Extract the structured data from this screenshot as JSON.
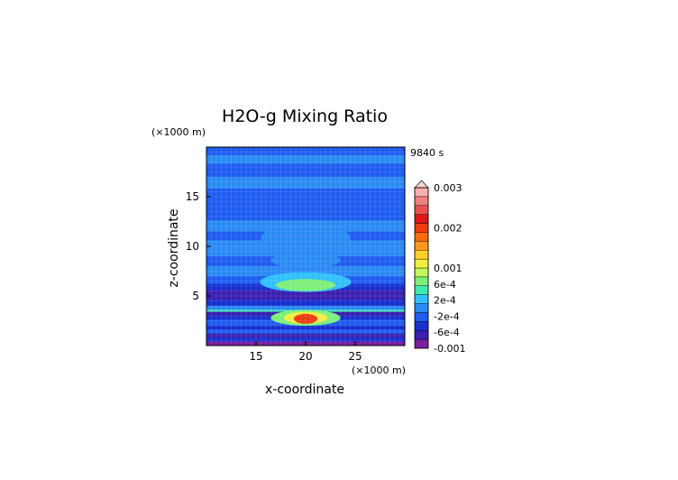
{
  "chart_data": {
    "type": "heatmap",
    "title": "H2O-g Mixing Ratio",
    "time_label": "9840 s",
    "xlabel": "x-coordinate",
    "ylabel": "z-coordinate",
    "x_unit": "(×1000 m)",
    "y_unit": "(×1000 m)",
    "xlim": [
      10,
      30
    ],
    "ylim": [
      0,
      20
    ],
    "x_ticks": [
      15,
      20,
      25
    ],
    "y_ticks": [
      5,
      10,
      15
    ],
    "colorbar": {
      "labels": [
        {
          "text": "0.003",
          "value": 0.003
        },
        {
          "text": "0.002",
          "value": 0.002
        },
        {
          "text": "0.001",
          "value": 0.001
        },
        {
          "text": "6e-4",
          "value": 0.0006
        },
        {
          "text": "2e-4",
          "value": 0.0002
        },
        {
          "text": "-2e-4",
          "value": -0.0002
        },
        {
          "text": "-6e-4",
          "value": -0.0006
        },
        {
          "text": "-0.001",
          "value": -0.001
        }
      ],
      "colors": [
        "#7a1fa0",
        "#3a1fb0",
        "#1830d0",
        "#1f5cf0",
        "#2a8af5",
        "#30c0ff",
        "#40e8b0",
        "#7cf07a",
        "#c4f55a",
        "#f0f040",
        "#ffd028",
        "#ff9a20",
        "#ff6a10",
        "#f03a10",
        "#e01818",
        "#e85050",
        "#f08080",
        "#f8b0b0"
      ]
    },
    "bands": [
      {
        "z_range": [
          19.2,
          20.0
        ],
        "value": -0.0002
      },
      {
        "z_range": [
          18.3,
          19.2
        ],
        "value": 0.0
      },
      {
        "z_range": [
          17.0,
          18.3
        ],
        "value": -0.0002
      },
      {
        "z_range": [
          15.8,
          17.0
        ],
        "value": 0.0
      },
      {
        "z_range": [
          12.6,
          15.8
        ],
        "value": -0.0002
      },
      {
        "z_range": [
          11.5,
          12.6
        ],
        "value": 0.0
      },
      {
        "z_range": [
          10.6,
          11.5
        ],
        "value": -0.0002
      },
      {
        "z_range": [
          9.0,
          10.6
        ],
        "value": 0.0
      },
      {
        "z_range": [
          8.0,
          9.0
        ],
        "value": -0.0002
      },
      {
        "z_range": [
          7.0,
          8.0
        ],
        "value": 0.0
      },
      {
        "z_range": [
          6.2,
          7.0
        ],
        "value": -0.0002
      },
      {
        "z_range": [
          5.6,
          6.2
        ],
        "value": -0.0004
      },
      {
        "z_range": [
          4.6,
          5.6
        ],
        "value": -0.0006
      },
      {
        "z_range": [
          4.0,
          4.6
        ],
        "value": -0.0004
      },
      {
        "z_range": [
          3.6,
          4.0
        ],
        "value": 0.0
      },
      {
        "z_range": [
          3.4,
          3.6
        ],
        "value": 0.0004
      },
      {
        "z_range": [
          3.0,
          3.4
        ],
        "value": -0.0006
      },
      {
        "z_range": [
          2.6,
          3.0
        ],
        "value": -0.0004
      },
      {
        "z_range": [
          2.0,
          2.6
        ],
        "value": -0.0002
      },
      {
        "z_range": [
          1.6,
          2.0
        ],
        "value": -0.0004
      },
      {
        "z_range": [
          1.2,
          1.6
        ],
        "value": -0.0002
      },
      {
        "z_range": [
          0.8,
          1.2
        ],
        "value": -0.0006
      },
      {
        "z_range": [
          0.4,
          0.8
        ],
        "value": -0.0004
      },
      {
        "z_range": [
          0.0,
          0.4
        ],
        "value": -0.001
      }
    ],
    "features": [
      {
        "center": [
          20,
          10.8
        ],
        "radii": [
          4.5,
          1.5
        ],
        "value": 0.0
      },
      {
        "center": [
          20,
          8.6
        ],
        "radii": [
          3.5,
          0.8
        ],
        "value": 0.0
      },
      {
        "center": [
          20,
          6.4
        ],
        "radii": [
          4.6,
          1.0
        ],
        "value": 0.0002
      },
      {
        "center": [
          20,
          6.1
        ],
        "radii": [
          3.0,
          0.6
        ],
        "value": 0.0006
      },
      {
        "center": [
          20,
          2.8
        ],
        "radii": [
          3.5,
          0.8
        ],
        "value": 0.0006
      },
      {
        "center": [
          20,
          2.8
        ],
        "radii": [
          2.2,
          0.6
        ],
        "value": 0.001
      },
      {
        "center": [
          20,
          2.7
        ],
        "radii": [
          1.2,
          0.5
        ],
        "value": 0.002
      }
    ]
  }
}
